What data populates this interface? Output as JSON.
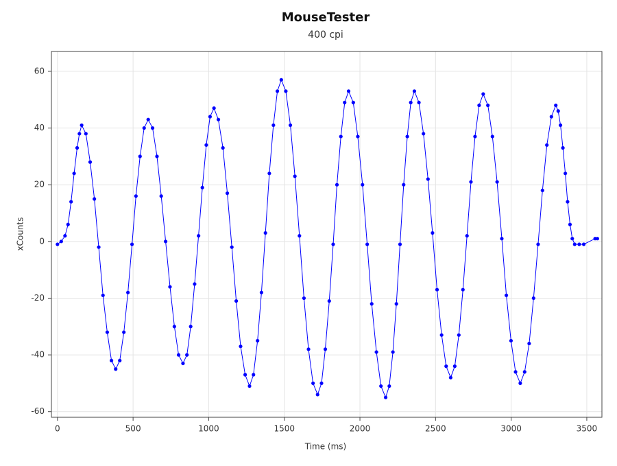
{
  "chart_data": {
    "type": "scatter",
    "title": "MouseTester",
    "subtitle": "400 cpi",
    "x_label": "Time (ms)",
    "y_label": "xCounts",
    "color": "#0000ff",
    "grid": true,
    "xlim": [
      -40,
      3600
    ],
    "ylim": [
      -62,
      67
    ],
    "xticks": [
      0,
      500,
      1000,
      1500,
      2000,
      2500,
      3000,
      3500
    ],
    "yticks": [
      -60,
      -40,
      -20,
      0,
      20,
      40,
      60
    ],
    "x": [
      0,
      25,
      50,
      70,
      90,
      110,
      130,
      145,
      160,
      188,
      216,
      244,
      273,
      301,
      329,
      357,
      385,
      412,
      439,
      466,
      493,
      519,
      546,
      573,
      600,
      629,
      658,
      686,
      715,
      744,
      773,
      801,
      830,
      856,
      881,
      907,
      933,
      958,
      984,
      1009,
      1035,
      1064,
      1094,
      1123,
      1153,
      1182,
      1211,
      1241,
      1270,
      1296,
      1323,
      1349,
      1375,
      1401,
      1428,
      1454,
      1480,
      1510,
      1540,
      1570,
      1600,
      1630,
      1660,
      1690,
      1720,
      1746,
      1771,
      1797,
      1823,
      1848,
      1874,
      1899,
      1925,
      1956,
      1986,
      2017,
      2048,
      2078,
      2109,
      2139,
      2170,
      2194,
      2218,
      2241,
      2265,
      2289,
      2313,
      2336,
      2360,
      2390,
      2420,
      2450,
      2480,
      2510,
      2540,
      2570,
      2600,
      2627,
      2654,
      2681,
      2708,
      2734,
      2761,
      2788,
      2815,
      2846,
      2876,
      2907,
      2938,
      2968,
      2999,
      3029,
      3060,
      3089,
      3119,
      3148,
      3178,
      3207,
      3236,
      3266,
      3295,
      3311,
      3326,
      3342,
      3358,
      3373,
      3389,
      3404,
      3420,
      3450,
      3480,
      3555,
      3570
    ],
    "values": [
      -1,
      0,
      2,
      6,
      14,
      24,
      33,
      38,
      41,
      38,
      28,
      15,
      -2,
      -19,
      -32,
      -42,
      -45,
      -42,
      -32,
      -18,
      -1,
      16,
      30,
      40,
      43,
      40,
      30,
      16,
      0,
      -16,
      -30,
      -40,
      -43,
      -40,
      -30,
      -15,
      2,
      19,
      34,
      44,
      47,
      43,
      33,
      17,
      -2,
      -21,
      -37,
      -47,
      -51,
      -47,
      -35,
      -18,
      3,
      24,
      41,
      53,
      57,
      53,
      41,
      23,
      2,
      -20,
      -38,
      -50,
      -54,
      -50,
      -38,
      -21,
      -1,
      20,
      37,
      49,
      53,
      49,
      37,
      20,
      -1,
      -22,
      -39,
      -51,
      -55,
      -51,
      -39,
      -22,
      -1,
      20,
      37,
      49,
      53,
      49,
      38,
      22,
      3,
      -17,
      -33,
      -44,
      -48,
      -44,
      -33,
      -17,
      2,
      21,
      37,
      48,
      52,
      48,
      37,
      21,
      1,
      -19,
      -35,
      -46,
      -50,
      -46,
      -36,
      -20,
      -1,
      18,
      34,
      44,
      48,
      46,
      41,
      33,
      24,
      14,
      6,
      1,
      -1,
      -1,
      -1,
      1,
      1
    ]
  }
}
